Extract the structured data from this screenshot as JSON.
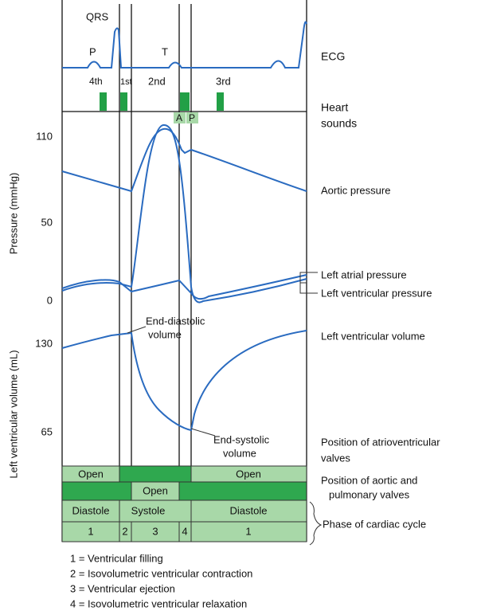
{
  "ecg": {
    "qrs": "QRS",
    "p": "P",
    "t": "T",
    "name": "ECG"
  },
  "heart_sounds": {
    "name": [
      "Heart",
      "sounds"
    ],
    "sounds": [
      "4th",
      "1st",
      "2nd",
      "3rd"
    ],
    "markers": [
      "A",
      "P"
    ]
  },
  "pressure": {
    "axis_label": "Pressure (mmHg)",
    "ticks": [
      "110",
      "50",
      "0"
    ],
    "labels": [
      "Aortic pressure",
      "Left atrial pressure",
      "Left ventricular pressure"
    ]
  },
  "volume": {
    "axis_label": "Left ventricular volume (mL)",
    "ticks": [
      "130",
      "65"
    ],
    "label": "Left ventricular volume",
    "end_diastolic": [
      "End-diastolic",
      "volume"
    ],
    "end_systolic": [
      "End-systolic",
      "volume"
    ]
  },
  "rows": {
    "av": {
      "cells": [
        "Open",
        "Open"
      ],
      "label": [
        "Position of atrioventricular",
        "valves"
      ]
    },
    "aortic": {
      "cells": [
        "Open"
      ],
      "label": [
        "Position of aortic and",
        "pulmonary valves"
      ]
    },
    "phase": {
      "cells": [
        "Diastole",
        "Systole",
        "Diastole"
      ],
      "numbers": [
        "1",
        "2",
        "3",
        "4",
        "1"
      ],
      "label": "Phase of cardiac cycle"
    }
  },
  "legend": [
    "1 = Ventricular filling",
    "2 = Isovolumetric ventricular contraction",
    "3 = Ventricular ejection",
    "4 = Isovolumetric ventricular relaxation"
  ]
}
